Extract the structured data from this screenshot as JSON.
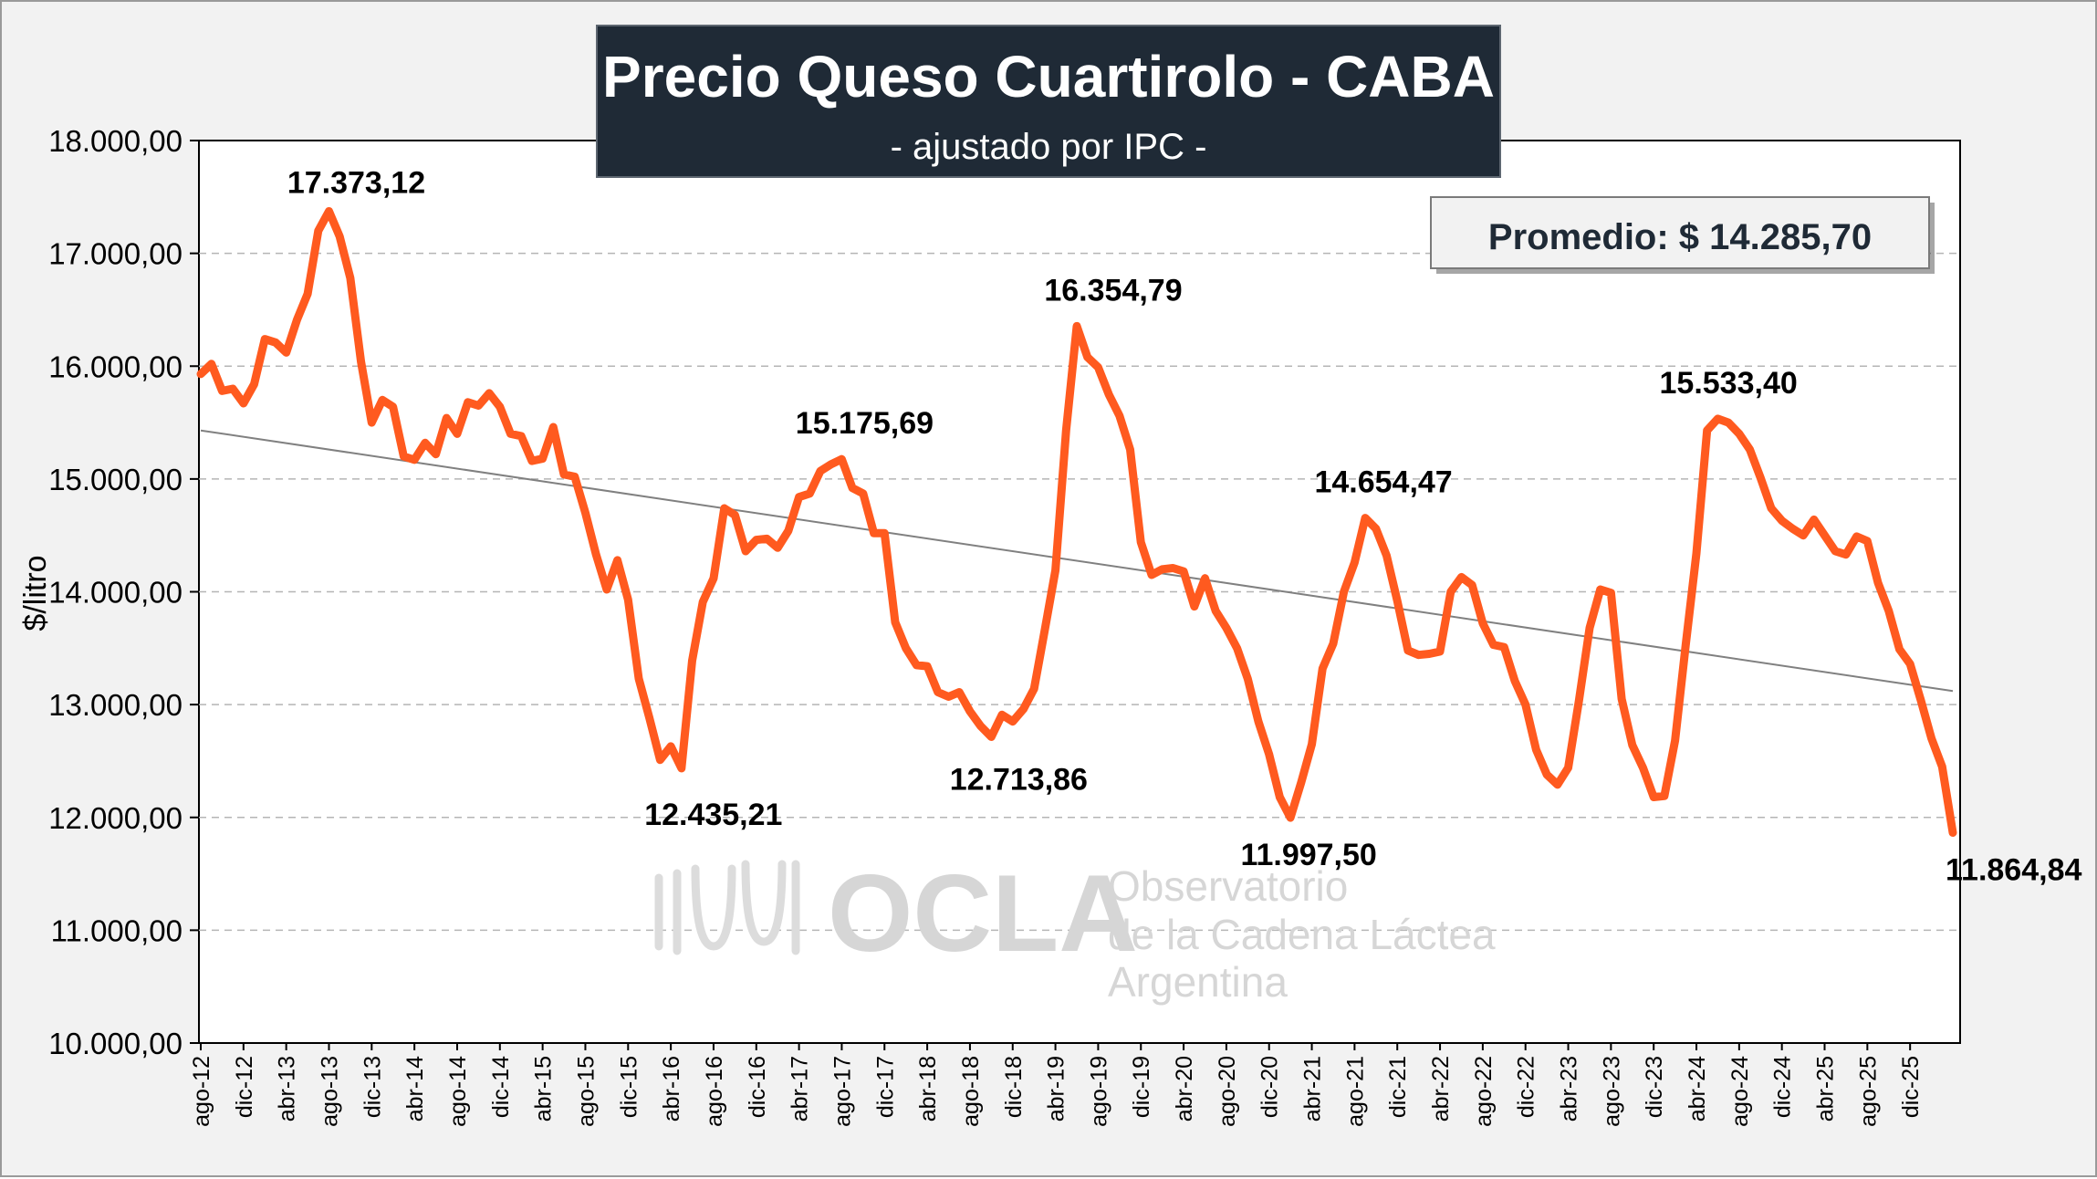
{
  "chart_data": {
    "type": "line",
    "title": "Precio Queso Cuartirolo - CABA",
    "subtitle": "- ajustado por IPC -",
    "ylabel": "$/litro",
    "xlabel": "",
    "ylim": [
      10000,
      18000
    ],
    "yticks": [
      10000,
      11000,
      12000,
      13000,
      14000,
      15000,
      16000,
      17000,
      18000
    ],
    "ytick_labels": [
      "10.000,00",
      "11.000,00",
      "12.000,00",
      "13.000,00",
      "14.000,00",
      "15.000,00",
      "16.000,00",
      "17.000,00",
      "18.000,00"
    ],
    "grid": "horizontal dashed",
    "average_label": "Promedio: $ 14.285,70",
    "average": 14285.7,
    "line_color": "#ff5a1f",
    "trend_color": "#808080",
    "trendline": {
      "start": 15430,
      "end": 13120
    },
    "xtick_labels": [
      "ago-12",
      "dic-12",
      "abr-13",
      "ago-13",
      "dic-13",
      "abr-14",
      "ago-14",
      "dic-14",
      "abr-15",
      "ago-15",
      "dic-15",
      "abr-16",
      "ago-16",
      "dic-16",
      "abr-17",
      "ago-17",
      "dic-17",
      "abr-18",
      "ago-18",
      "dic-18",
      "abr-19",
      "ago-19",
      "dic-19",
      "abr-20",
      "ago-20",
      "dic-20",
      "abr-21",
      "ago-21",
      "dic-21",
      "abr-22",
      "ago-22",
      "dic-22",
      "abr-23",
      "ago-23",
      "dic-23",
      "abr-24",
      "ago-24",
      "dic-24",
      "abr-25",
      "ago-25",
      "dic-25"
    ],
    "series": [
      {
        "start_month": "ago-12",
        "values": [
          15930,
          16020,
          15780,
          15800,
          15670,
          15840,
          16240,
          16210,
          16120,
          16410,
          16640,
          17200,
          17373.12,
          17150,
          16780,
          16040,
          15500,
          15700,
          15640,
          15200,
          15170,
          15320,
          15220,
          15540,
          15400,
          15680,
          15650,
          15760,
          15640,
          15400,
          15380,
          15160,
          15180,
          15460,
          15040,
          15020,
          14700,
          14330,
          14020,
          14280,
          13930,
          13230,
          12880,
          12510,
          12630,
          12435.21,
          13390,
          13910,
          14120,
          14740,
          14680,
          14360,
          14460,
          14470,
          14390,
          14540,
          14840,
          14870,
          15070,
          15130,
          15175.69,
          14920,
          14870,
          14520,
          14520,
          13730,
          13500,
          13350,
          13340,
          13110,
          13070,
          13110,
          12940,
          12810,
          12713.86,
          12910,
          12850,
          12960,
          13140,
          13660,
          14190,
          15430,
          16354.79,
          16080,
          15990,
          15750,
          15560,
          15260,
          14440,
          14150,
          14200,
          14210,
          14180,
          13870,
          14120,
          13830,
          13680,
          13500,
          13230,
          12850,
          12560,
          12180,
          11997.5,
          12310,
          12650,
          13320,
          13540,
          14000,
          14260,
          14654.47,
          14560,
          14320,
          13920,
          13480,
          13440,
          13450,
          13470,
          14000,
          14130,
          14060,
          13720,
          13530,
          13510,
          13210,
          13000,
          12600,
          12380,
          12290,
          12440,
          13030,
          13680,
          14020,
          13990,
          13050,
          12640,
          12440,
          12180,
          12190,
          12680,
          13530,
          14340,
          15430,
          15533.4,
          15500,
          15400,
          15260,
          15010,
          14740,
          14630,
          14560,
          14500,
          14640,
          14500,
          14360,
          14330,
          14490,
          14450,
          14080,
          13830,
          13490,
          13360,
          13040,
          12700,
          12450,
          11864.84
        ]
      }
    ],
    "annotations": [
      {
        "label": "17.373,12"
      },
      {
        "label": "12.435,21"
      },
      {
        "label": "15.175,69"
      },
      {
        "label": "12.713,86"
      },
      {
        "label": "16.354,79"
      },
      {
        "label": "11.997,50"
      },
      {
        "label": "14.654,47"
      },
      {
        "label": "15.533,40"
      },
      {
        "label": "11.864,84"
      }
    ]
  },
  "watermark": {
    "brand": "OCLA",
    "line1": "Observatorio",
    "line2": "de la Cadena Láctea",
    "line3": "Argentina"
  }
}
